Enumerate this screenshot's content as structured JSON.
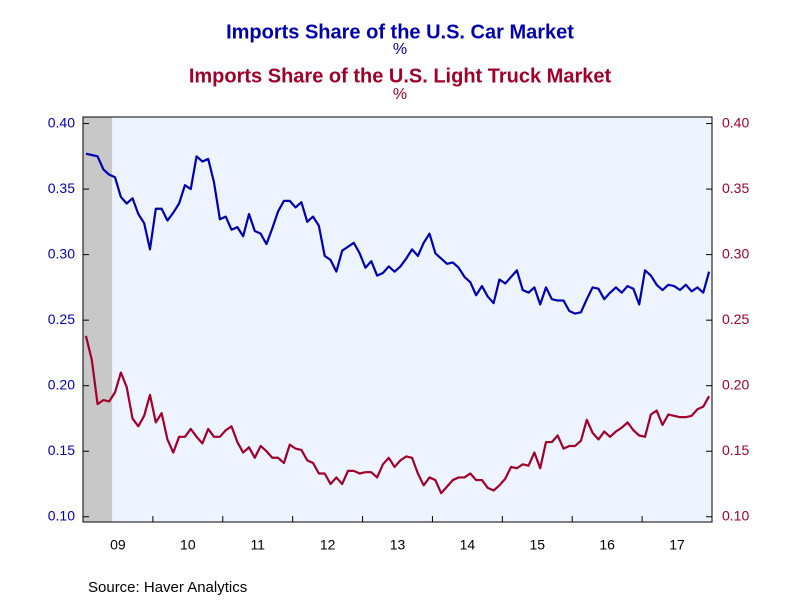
{
  "chart_data": {
    "type": "line",
    "title": "Imports Share of the U.S. Car Market",
    "subtitle": "%",
    "title2": "Imports Share of the U.S. Light Truck Market",
    "subtitle2": "%",
    "source": "Source:  Haver Analytics",
    "categories": [
      null,
      null,
      null,
      null,
      null,
      null,
      "09",
      null,
      null,
      null,
      null,
      null,
      null,
      null,
      null,
      null,
      null,
      null,
      "10",
      null,
      null,
      null,
      null,
      null,
      null,
      null,
      null,
      null,
      null,
      null,
      "11",
      null,
      null,
      null,
      null,
      null,
      null,
      null,
      null,
      null,
      null,
      null,
      "12",
      null,
      null,
      null,
      null,
      null,
      null,
      null,
      null,
      null,
      null,
      null,
      "13",
      null,
      null,
      null,
      null,
      null,
      null,
      null,
      null,
      null,
      null,
      null,
      "14",
      null,
      null,
      null,
      null,
      null,
      null,
      null,
      null,
      null,
      null,
      null,
      "15",
      null,
      null,
      null,
      null,
      null,
      null,
      null,
      null,
      null,
      null,
      null,
      "16",
      null,
      null,
      null,
      null,
      null,
      null,
      null,
      null,
      null,
      null,
      null,
      "17",
      null,
      null,
      null,
      null,
      null
    ],
    "shade": [
      0,
      4
    ],
    "series": [
      {
        "name": "Imports Share of the U.S. Car Market",
        "color": "#0000b0",
        "axis": "y",
        "values": [
          0.377,
          0.376,
          0.375,
          0.365,
          0.361,
          0.359,
          0.344,
          0.339,
          0.343,
          0.331,
          0.324,
          0.304,
          0.335,
          0.335,
          0.326,
          0.332,
          0.339,
          0.353,
          0.35,
          0.375,
          0.371,
          0.373,
          0.355,
          0.327,
          0.329,
          0.319,
          0.321,
          0.314,
          0.331,
          0.318,
          0.316,
          0.308,
          0.32,
          0.333,
          0.341,
          0.341,
          0.336,
          0.34,
          0.325,
          0.329,
          0.322,
          0.299,
          0.296,
          0.287,
          0.303,
          0.306,
          0.309,
          0.301,
          0.29,
          0.295,
          0.284,
          0.286,
          0.291,
          0.287,
          0.291,
          0.297,
          0.304,
          0.299,
          0.309,
          0.316,
          0.301,
          0.297,
          0.293,
          0.294,
          0.29,
          0.283,
          0.279,
          0.269,
          0.276,
          0.268,
          0.263,
          0.281,
          0.278,
          0.283,
          0.288,
          0.273,
          0.271,
          0.275,
          0.262,
          0.275,
          0.266,
          0.265,
          0.265,
          0.257,
          0.255,
          0.256,
          0.266,
          0.275,
          0.274,
          0.266,
          0.271,
          0.275,
          0.271,
          0.276,
          0.274,
          0.262,
          0.288,
          0.284,
          0.277,
          0.273,
          0.277,
          0.276,
          0.273,
          0.277,
          0.272,
          0.275,
          0.271,
          0.287
        ]
      },
      {
        "name": "Imports Share of the U.S. Light Truck Market",
        "color": "#a0002a",
        "axis": "y2",
        "values": [
          0.238,
          0.22,
          0.186,
          0.189,
          0.188,
          0.195,
          0.21,
          0.199,
          0.175,
          0.169,
          0.177,
          0.193,
          0.172,
          0.179,
          0.159,
          0.149,
          0.161,
          0.161,
          0.167,
          0.161,
          0.156,
          0.167,
          0.161,
          0.161,
          0.166,
          0.169,
          0.157,
          0.149,
          0.153,
          0.145,
          0.154,
          0.15,
          0.145,
          0.145,
          0.141,
          0.155,
          0.152,
          0.151,
          0.143,
          0.141,
          0.133,
          0.133,
          0.125,
          0.13,
          0.125,
          0.135,
          0.135,
          0.133,
          0.134,
          0.134,
          0.13,
          0.14,
          0.145,
          0.138,
          0.143,
          0.146,
          0.145,
          0.133,
          0.124,
          0.13,
          0.128,
          0.118,
          0.123,
          0.128,
          0.13,
          0.13,
          0.133,
          0.128,
          0.128,
          0.122,
          0.12,
          0.124,
          0.129,
          0.138,
          0.137,
          0.14,
          0.139,
          0.149,
          0.137,
          0.157,
          0.157,
          0.162,
          0.152,
          0.154,
          0.154,
          0.158,
          0.174,
          0.164,
          0.159,
          0.165,
          0.161,
          0.165,
          0.168,
          0.172,
          0.166,
          0.162,
          0.161,
          0.178,
          0.181,
          0.17,
          0.178,
          0.177,
          0.176,
          0.176,
          0.177,
          0.182,
          0.184,
          0.192
        ]
      }
    ],
    "ylim": [
      0.096,
      0.405
    ],
    "yticks": [
      {
        "value": 0.1,
        "label": "0.10"
      },
      {
        "value": 0.15,
        "label": "0.15"
      },
      {
        "value": 0.2,
        "label": "0.20"
      },
      {
        "value": 0.25,
        "label": "0.25"
      },
      {
        "value": 0.3,
        "label": "0.30"
      },
      {
        "value": 0.35,
        "label": "0.35"
      },
      {
        "value": 0.4,
        "label": "0.40"
      }
    ],
    "y2lim": [
      0.096,
      0.405
    ],
    "y2ticks": [
      {
        "value": 0.1,
        "label": "0.10"
      },
      {
        "value": 0.15,
        "label": "0.15"
      },
      {
        "value": 0.2,
        "label": "0.20"
      },
      {
        "value": 0.25,
        "label": "0.25"
      },
      {
        "value": 0.3,
        "label": "0.30"
      },
      {
        "value": 0.35,
        "label": "0.35"
      },
      {
        "value": 0.4,
        "label": "0.40"
      }
    ]
  }
}
